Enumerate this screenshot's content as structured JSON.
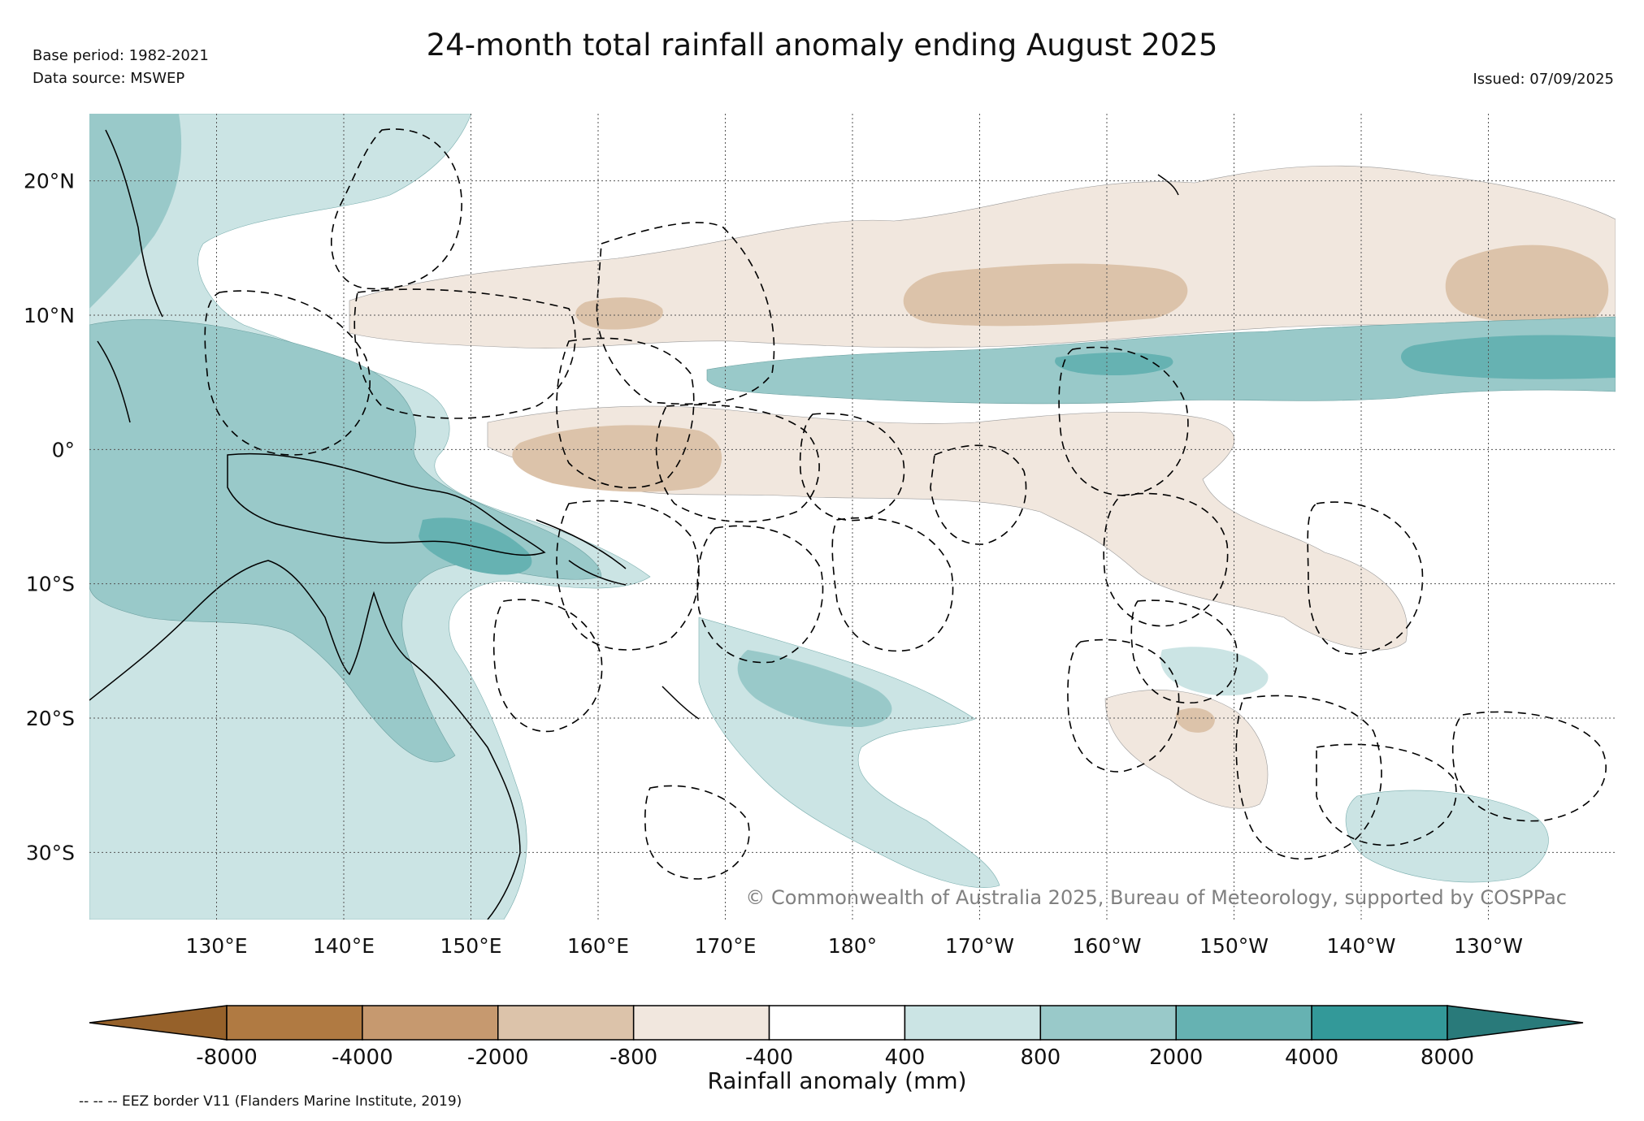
{
  "title": "24-month total rainfall anomaly ending August 2025",
  "meta": {
    "base_period": "Base period: 1982-2021",
    "data_source": "Data source: MSWEP",
    "issued": "Issued: 07/09/2025"
  },
  "map": {
    "lon_range": [
      120,
      240
    ],
    "lat_range": [
      -35,
      25
    ],
    "lon_ticks": [
      {
        "value": 130,
        "label": "130°E"
      },
      {
        "value": 140,
        "label": "140°E"
      },
      {
        "value": 150,
        "label": "150°E"
      },
      {
        "value": 160,
        "label": "160°E"
      },
      {
        "value": 170,
        "label": "170°E"
      },
      {
        "value": 180,
        "label": "180°"
      },
      {
        "value": 190,
        "label": "170°W"
      },
      {
        "value": 200,
        "label": "160°W"
      },
      {
        "value": 210,
        "label": "150°W"
      },
      {
        "value": 220,
        "label": "140°W"
      },
      {
        "value": 230,
        "label": "130°W"
      }
    ],
    "lat_ticks": [
      {
        "value": 20,
        "label": "20°N"
      },
      {
        "value": 10,
        "label": "10°N"
      },
      {
        "value": 0,
        "label": "0°"
      },
      {
        "value": -10,
        "label": "10°S"
      },
      {
        "value": -20,
        "label": "20°S"
      },
      {
        "value": -30,
        "label": "30°S"
      }
    ],
    "copyright": "© Commonwealth of Australia 2025, Bureau of Meteorology, supported by COSPPac"
  },
  "colorbar": {
    "title": "Rainfall anomaly (mm)",
    "tick_labels": [
      "-8000",
      "-4000",
      "-2000",
      "-800",
      "-400",
      "400",
      "800",
      "2000",
      "4000",
      "8000"
    ],
    "colors": [
      "#96612a",
      "#b07a42",
      "#c6996f",
      "#dcc3aa",
      "#f1e7de",
      "#ffffff",
      "#cbe4e4",
      "#99c9c9",
      "#66b2b2",
      "#339999",
      "#297a7a"
    ]
  },
  "eez_note": "-- -- -- EEZ border V11 (Flanders Marine Institute, 2019)"
}
